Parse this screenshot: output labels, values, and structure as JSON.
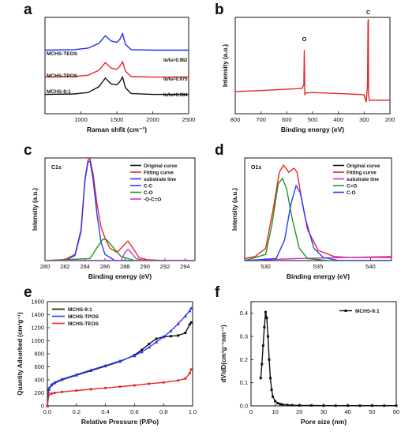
{
  "panel_labels": [
    "a",
    "b",
    "c",
    "d",
    "e",
    "f"
  ],
  "chart_data": [
    {
      "panel": "a",
      "type": "line",
      "xlabel": "Raman shfit (cm⁻¹)",
      "ylabel": "",
      "xlim": [
        500,
        2500
      ],
      "ylim": [
        0,
        1
      ],
      "xticks": [
        "1000",
        "1500",
        "2000",
        "2500"
      ],
      "series": [
        {
          "name": "MCHS-TEOS",
          "ratio_label": "Iᴅ/Iɢ=0.982",
          "color": "#1f2ff5",
          "x": [
            500,
            900,
            1100,
            1250,
            1340,
            1420,
            1500,
            1540,
            1580,
            1620,
            1700,
            2000,
            2500
          ],
          "y": [
            0.66,
            0.665,
            0.68,
            0.73,
            0.81,
            0.755,
            0.74,
            0.77,
            0.83,
            0.72,
            0.665,
            0.66,
            0.66
          ]
        },
        {
          "name": "MCHS-TPOS",
          "ratio_label": "Iᴅ/Iɢ=0.975",
          "color": "#e82424",
          "x": [
            500,
            900,
            1100,
            1250,
            1340,
            1420,
            1500,
            1540,
            1580,
            1620,
            1700,
            2000,
            2500
          ],
          "y": [
            0.38,
            0.385,
            0.4,
            0.45,
            0.53,
            0.475,
            0.46,
            0.49,
            0.54,
            0.44,
            0.385,
            0.38,
            0.38
          ]
        },
        {
          "name": "MCHS-9:1",
          "ratio_label": "Iᴅ/Iɢ=0.984",
          "color": "#111111",
          "x": [
            500,
            900,
            1100,
            1250,
            1340,
            1420,
            1500,
            1540,
            1580,
            1620,
            1700,
            2000,
            2500
          ],
          "y": [
            0.2,
            0.205,
            0.22,
            0.28,
            0.37,
            0.31,
            0.3,
            0.33,
            0.38,
            0.27,
            0.21,
            0.2,
            0.2
          ]
        }
      ]
    },
    {
      "panel": "b",
      "type": "line",
      "xlabel": "Binding energy (eV)",
      "ylabel": "Intensity (a.u.)",
      "xlim": [
        800,
        200
      ],
      "ylim": [
        0,
        1
      ],
      "xticks": [
        "800",
        "700",
        "600",
        "500",
        "400",
        "300",
        "200"
      ],
      "annotations": [
        {
          "text": "O",
          "x": 532,
          "y": 0.72
        },
        {
          "text": "C",
          "x": 284,
          "y": 1.0
        }
      ],
      "series": [
        {
          "name": "",
          "color": "#e82424",
          "x": [
            800,
            700,
            600,
            560,
            540,
            534,
            532,
            530,
            525,
            500,
            400,
            320,
            300,
            292,
            287,
            285,
            284,
            283,
            280,
            250,
            200
          ],
          "y": [
            0.23,
            0.24,
            0.255,
            0.26,
            0.265,
            0.3,
            0.66,
            0.2,
            0.215,
            0.22,
            0.21,
            0.2,
            0.195,
            0.12,
            0.3,
            0.95,
            0.98,
            0.2,
            0.14,
            0.14,
            0.14
          ]
        }
      ]
    },
    {
      "panel": "c",
      "type": "line",
      "core_level": "C1s",
      "xlabel": "Binding energy (eV)",
      "ylabel": "Intensity (a.u.)",
      "xlim": [
        280,
        295
      ],
      "ylim": [
        0,
        1
      ],
      "xticks": [
        "280",
        "282",
        "284",
        "286",
        "288",
        "290",
        "292",
        "294"
      ],
      "series": [
        {
          "name": "Original curve",
          "color": "#111111",
          "x": [],
          "y": []
        },
        {
          "name": "Fitting curve",
          "color": "#e82424",
          "x": [
            280,
            282,
            283,
            283.6,
            284,
            284.3,
            284.5,
            284.8,
            285.2,
            285.6,
            286.0,
            286.5,
            287.2,
            287.8,
            288.3,
            288.8,
            289.4,
            290,
            292,
            295
          ],
          "y": [
            0.0,
            0.01,
            0.06,
            0.3,
            0.8,
            0.98,
            0.99,
            0.85,
            0.55,
            0.33,
            0.22,
            0.12,
            0.08,
            0.14,
            0.19,
            0.12,
            0.03,
            0.01,
            0.0,
            0.0
          ]
        },
        {
          "name": "substrate line",
          "color": "#2a3aff",
          "x": [
            280,
            295
          ],
          "y": [
            0.0,
            0.0
          ]
        },
        {
          "name": "C-C",
          "color": "#2a3aff",
          "x": [
            280,
            282,
            283,
            283.6,
            284,
            284.3,
            284.5,
            284.8,
            285.2,
            285.6,
            286.0,
            287,
            290,
            295
          ],
          "y": [
            0.0,
            0.0,
            0.05,
            0.28,
            0.78,
            0.96,
            0.97,
            0.8,
            0.45,
            0.18,
            0.06,
            0.0,
            0.0,
            0.0
          ]
        },
        {
          "name": "C-O",
          "color": "#1f9a1f",
          "x": [
            280,
            284.5,
            285.3,
            285.8,
            286.2,
            286.9,
            287.6,
            289,
            295
          ],
          "y": [
            0.0,
            0.02,
            0.14,
            0.21,
            0.2,
            0.12,
            0.04,
            0.0,
            0.0
          ]
        },
        {
          "name": "-O-C=O",
          "color": "#cc33cc",
          "x": [
            280,
            287.6,
            288.0,
            288.3,
            288.6,
            289.1,
            290,
            295
          ],
          "y": [
            0.0,
            0.0,
            0.08,
            0.11,
            0.08,
            0.02,
            0.0,
            0.0
          ]
        }
      ]
    },
    {
      "panel": "d",
      "type": "line",
      "core_level": "O1s",
      "xlabel": "Binding energy (eV)",
      "ylabel": "Intensity (a.u.)",
      "xlim": [
        528,
        542
      ],
      "ylim": [
        0,
        1
      ],
      "xticks": [
        "530",
        "535",
        "540"
      ],
      "series": [
        {
          "name": "Original curve",
          "color": "#111111",
          "x": [],
          "y": []
        },
        {
          "name": "Fitting curve",
          "color": "#e82424",
          "x": [
            528,
            529,
            530,
            530.8,
            531.3,
            531.7,
            532.2,
            532.7,
            533.0,
            533.4,
            534.0,
            535.0,
            536.5,
            538,
            542
          ],
          "y": [
            0.02,
            0.04,
            0.12,
            0.55,
            0.86,
            0.93,
            0.86,
            0.9,
            0.86,
            0.62,
            0.3,
            0.1,
            0.04,
            0.03,
            0.03
          ]
        },
        {
          "name": "substrate line",
          "color": "#cc33cc",
          "x": [
            528,
            533,
            542
          ],
          "y": [
            0.0,
            0.02,
            0.04
          ]
        },
        {
          "name": "C=O",
          "color": "#1f9a1f",
          "x": [
            528,
            530,
            530.6,
            531.2,
            531.6,
            532.0,
            532.5,
            533.2,
            534,
            536,
            542
          ],
          "y": [
            0.0,
            0.06,
            0.35,
            0.75,
            0.8,
            0.7,
            0.42,
            0.12,
            0.02,
            0.0,
            0.0
          ]
        },
        {
          "name": "C-O",
          "color": "#2a3aff",
          "x": [
            528,
            531,
            531.8,
            532.4,
            532.9,
            533.3,
            533.8,
            534.6,
            535.5,
            537,
            542
          ],
          "y": [
            0.0,
            0.02,
            0.2,
            0.55,
            0.73,
            0.66,
            0.4,
            0.12,
            0.03,
            0.0,
            0.0
          ]
        }
      ]
    },
    {
      "panel": "e",
      "type": "line",
      "xlabel": "Relative Pressure (P/Po)",
      "ylabel": "Quantity Adsorbed (cm³g⁻¹)",
      "xlim": [
        0,
        1
      ],
      "ylim": [
        0,
        1600
      ],
      "xticks": [
        "0.0",
        "0.2",
        "0.4",
        "0.6",
        "0.8",
        "1.0"
      ],
      "yticks": [
        "0",
        "200",
        "400",
        "600",
        "800",
        "1000",
        "1200",
        "1400",
        "1600"
      ],
      "series": [
        {
          "name": "MCHS-9:1",
          "color": "#111111",
          "x": [
            0.0,
            0.01,
            0.03,
            0.05,
            0.1,
            0.2,
            0.3,
            0.4,
            0.5,
            0.6,
            0.65,
            0.7,
            0.75,
            0.8,
            0.85,
            0.9,
            0.95,
            0.98,
            0.99
          ],
          "y": [
            0,
            250,
            320,
            350,
            400,
            470,
            540,
            610,
            680,
            780,
            860,
            950,
            1030,
            1060,
            1070,
            1080,
            1120,
            1250,
            1280
          ]
        },
        {
          "name": "MCHS-TPOS",
          "color": "#2a3aff",
          "x": [
            0.0,
            0.01,
            0.03,
            0.05,
            0.1,
            0.2,
            0.3,
            0.4,
            0.5,
            0.6,
            0.65,
            0.7,
            0.75,
            0.8,
            0.85,
            0.9,
            0.95,
            0.98,
            0.99
          ],
          "y": [
            0,
            270,
            330,
            360,
            410,
            480,
            550,
            620,
            690,
            770,
            830,
            900,
            980,
            1060,
            1150,
            1260,
            1380,
            1460,
            1500
          ]
        },
        {
          "name": "MCHS-TEOS",
          "color": "#e82424",
          "x": [
            0.0,
            0.01,
            0.03,
            0.05,
            0.1,
            0.2,
            0.3,
            0.4,
            0.5,
            0.6,
            0.7,
            0.8,
            0.9,
            0.95,
            0.98,
            0.99
          ],
          "y": [
            0,
            170,
            190,
            200,
            215,
            235,
            255,
            275,
            295,
            315,
            340,
            360,
            390,
            420,
            500,
            560
          ]
        }
      ]
    },
    {
      "panel": "f",
      "type": "line",
      "xlabel": "Pore size (nm)",
      "ylabel": "dV/dD(cm³g⁻¹nm⁻¹)",
      "xlim": [
        0,
        60
      ],
      "ylim": [
        0,
        0.45
      ],
      "xticks": [
        "0",
        "10",
        "20",
        "30",
        "40",
        "50",
        "60"
      ],
      "yticks": [
        "0.0",
        "0.1",
        "0.2",
        "0.3",
        "0.4"
      ],
      "series": [
        {
          "name": "MCHS-9:1",
          "color": "#111111",
          "x": [
            4,
            4.5,
            5,
            5.5,
            6,
            6.5,
            7,
            7.5,
            8,
            8.5,
            9,
            10,
            11,
            12,
            13,
            15,
            17,
            20,
            25,
            30,
            35,
            40,
            45,
            50,
            55,
            60
          ],
          "y": [
            0.12,
            0.18,
            0.26,
            0.34,
            0.405,
            0.38,
            0.3,
            0.2,
            0.12,
            0.07,
            0.04,
            0.02,
            0.012,
            0.008,
            0.006,
            0.004,
            0.003,
            0.002,
            0.002,
            0.001,
            0.001,
            0.001,
            0.001,
            0.001,
            0.001,
            0.001
          ]
        }
      ]
    }
  ]
}
